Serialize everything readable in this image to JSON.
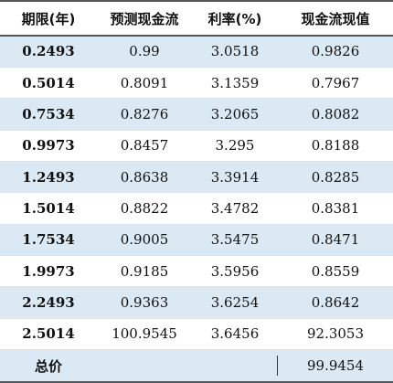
{
  "headers": [
    "期限(年)",
    "预测现金流",
    "利率(%)",
    "现金流现值"
  ],
  "rows": [
    [
      "0.2493",
      "0.99",
      "3.0518",
      "0.9826"
    ],
    [
      "0.5014",
      "0.8091",
      "3.1359",
      "0.7967"
    ],
    [
      "0.7534",
      "0.8276",
      "3.2065",
      "0.8082"
    ],
    [
      "0.9973",
      "0.8457",
      "3.295",
      "0.8188"
    ],
    [
      "1.2493",
      "0.8638",
      "3.3914",
      "0.8285"
    ],
    [
      "1.5014",
      "0.8822",
      "3.4782",
      "0.8381"
    ],
    [
      "1.7534",
      "0.9005",
      "3.5475",
      "0.8471"
    ],
    [
      "1.9973",
      "0.9185",
      "3.5956",
      "0.8559"
    ],
    [
      "2.2493",
      "0.9363",
      "3.6254",
      "0.8642"
    ],
    [
      "2.5014",
      "100.9545",
      "3.6456",
      "92.3053"
    ]
  ],
  "total": {
    "label": "总价",
    "value": "99.9454"
  },
  "colors": {
    "shade": "#dbe9f5",
    "rule": "#555555"
  }
}
